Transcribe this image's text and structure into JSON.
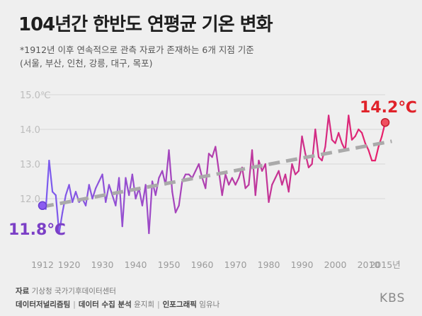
{
  "title": "104년간 한반도 연평균 기온 변화",
  "note_line1": "*1912년 이후 연속적으로 관측 자료가 존재하는 6개 지점 기준",
  "note_line2": "(서울, 부산, 인천, 강릉, 대구, 목포)",
  "footer": {
    "source_label": "자료",
    "source_value": "기상청 국가기후데이터센터",
    "producer": "데이터저널리즘팀",
    "data_label": "데이터 수집 분석",
    "data_person": "윤지희",
    "graphic_label": "인포그래픽",
    "graphic_person": "임유나"
  },
  "logo": "KBS",
  "colors": {
    "start": "#7b5cf0",
    "end": "#e8206a",
    "trend": "#aaaaaa",
    "end_label": "#e0222a",
    "start_label": "#7b3fc6"
  },
  "chart_data": {
    "type": "line",
    "xlabel": "",
    "ylabel": "",
    "xlim": [
      1912,
      2015
    ],
    "ylim": [
      11.0,
      15.0
    ],
    "grid": true,
    "y_ticks": [
      {
        "value": 12,
        "label": "12.0"
      },
      {
        "value": 13,
        "label": "13.0"
      },
      {
        "value": 14,
        "label": "14.0"
      },
      {
        "value": 15,
        "label": "15.0℃"
      }
    ],
    "x_ticks": [
      {
        "value": 1912,
        "label": "1912"
      },
      {
        "value": 1920,
        "label": "1920"
      },
      {
        "value": 1930,
        "label": "1930"
      },
      {
        "value": 1940,
        "label": "1940"
      },
      {
        "value": 1950,
        "label": "1950"
      },
      {
        "value": 1960,
        "label": "1960"
      },
      {
        "value": 1970,
        "label": "1970"
      },
      {
        "value": 1980,
        "label": "1980"
      },
      {
        "value": 1990,
        "label": "1990"
      },
      {
        "value": 2000,
        "label": "2000"
      },
      {
        "value": 2010,
        "label": "2010"
      },
      {
        "value": 2015,
        "label": "2015년"
      }
    ],
    "start_label": "11.8℃",
    "end_label": "14.2℃",
    "x": [
      1912,
      1913,
      1914,
      1915,
      1916,
      1917,
      1918,
      1919,
      1920,
      1921,
      1922,
      1923,
      1924,
      1925,
      1926,
      1927,
      1928,
      1929,
      1930,
      1931,
      1932,
      1933,
      1934,
      1935,
      1936,
      1937,
      1938,
      1939,
      1940,
      1941,
      1942,
      1943,
      1944,
      1945,
      1946,
      1947,
      1948,
      1949,
      1950,
      1951,
      1952,
      1953,
      1954,
      1955,
      1956,
      1957,
      1958,
      1959,
      1960,
      1961,
      1962,
      1963,
      1964,
      1965,
      1966,
      1967,
      1968,
      1969,
      1970,
      1971,
      1972,
      1973,
      1974,
      1975,
      1976,
      1977,
      1978,
      1979,
      1980,
      1981,
      1982,
      1983,
      1984,
      1985,
      1986,
      1987,
      1988,
      1989,
      1990,
      1991,
      1992,
      1993,
      1994,
      1995,
      1996,
      1997,
      1998,
      1999,
      2000,
      2001,
      2002,
      2003,
      2004,
      2005,
      2006,
      2007,
      2008,
      2009,
      2010,
      2011,
      2012,
      2013,
      2014,
      2015
    ],
    "y": [
      11.8,
      11.7,
      13.1,
      12.2,
      12.1,
      11.0,
      11.6,
      12.1,
      12.4,
      11.9,
      12.2,
      11.9,
      12.0,
      11.8,
      12.4,
      12.0,
      12.3,
      12.5,
      12.7,
      11.9,
      12.4,
      12.1,
      11.8,
      12.6,
      11.2,
      12.6,
      12.1,
      12.7,
      12.0,
      12.3,
      11.8,
      12.4,
      11.0,
      12.5,
      12.1,
      12.6,
      12.8,
      12.4,
      13.4,
      12.2,
      11.6,
      11.8,
      12.5,
      12.7,
      12.7,
      12.6,
      12.8,
      13.0,
      12.6,
      12.3,
      13.3,
      13.2,
      13.5,
      12.8,
      12.1,
      12.7,
      12.4,
      12.6,
      12.4,
      12.6,
      12.9,
      12.3,
      12.4,
      13.4,
      12.1,
      13.1,
      12.8,
      13.0,
      11.9,
      12.4,
      12.6,
      12.8,
      12.4,
      12.7,
      12.2,
      13.0,
      12.7,
      12.8,
      13.8,
      13.3,
      12.9,
      13.0,
      14.0,
      13.2,
      13.1,
      13.5,
      14.4,
      13.7,
      13.6,
      13.9,
      13.6,
      13.4,
      14.4,
      13.7,
      13.8,
      14.0,
      13.9,
      13.6,
      13.4,
      13.1,
      13.1,
      13.5,
      13.8,
      14.2
    ]
  }
}
